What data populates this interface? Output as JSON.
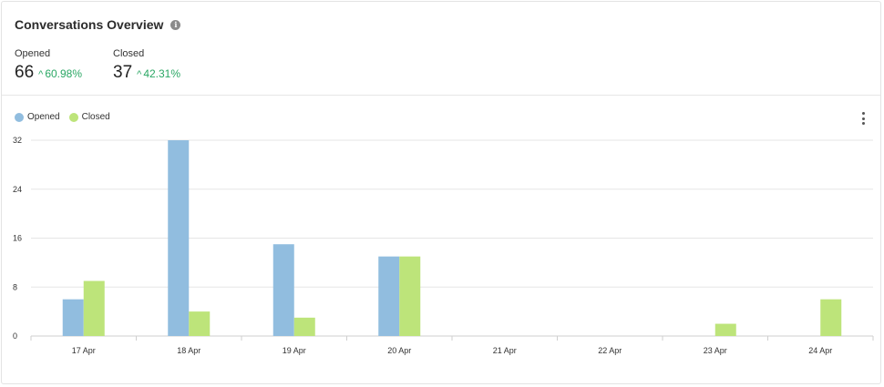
{
  "header": {
    "title": "Conversations Overview",
    "info_icon": "info-icon"
  },
  "metrics": [
    {
      "label": "Opened",
      "value": "66",
      "delta": "60.98%",
      "trend": "up"
    },
    {
      "label": "Closed",
      "value": "37",
      "delta": "42.31%",
      "trend": "up"
    }
  ],
  "colors": {
    "opened": "#91bddf",
    "closed": "#bde47a",
    "positive": "#2aa764",
    "grid": "#e5e5e5"
  },
  "menu_icon": "more-vertical-icon",
  "chart_data": {
    "type": "bar",
    "categories": [
      "17 Apr",
      "18 Apr",
      "19 Apr",
      "20 Apr",
      "21 Apr",
      "22 Apr",
      "23 Apr",
      "24 Apr"
    ],
    "series": [
      {
        "name": "Opened",
        "values": [
          6,
          32,
          15,
          13,
          0,
          0,
          0,
          0
        ]
      },
      {
        "name": "Closed",
        "values": [
          9,
          4,
          3,
          13,
          0,
          0,
          2,
          6
        ]
      }
    ],
    "yticks": [
      "0",
      "8",
      "16",
      "24",
      "32"
    ],
    "ylim": [
      0,
      32
    ],
    "legend": "top-left",
    "grid": true,
    "title": "",
    "xlabel": "",
    "ylabel": ""
  }
}
